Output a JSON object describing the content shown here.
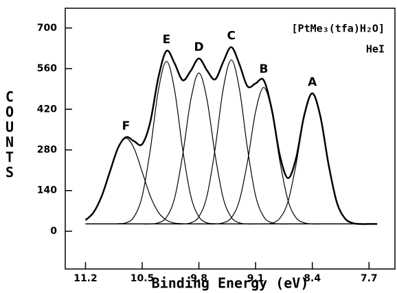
{
  "chart_data": {
    "type": "line",
    "xlabel": "Binding Energy (eV)",
    "ylabel": "COUNTS",
    "annotations": [
      "F",
      "E",
      "D",
      "C",
      "B",
      "A"
    ],
    "texts": [
      "[PtMe₃(tfa)H₂O]",
      "HeI"
    ],
    "x": [
      11.2,
      11.1,
      11.0,
      10.9,
      10.8,
      10.7,
      10.6,
      10.5,
      10.4,
      10.3,
      10.2,
      10.1,
      10.0,
      9.9,
      9.8,
      9.7,
      9.6,
      9.5,
      9.4,
      9.3,
      9.2,
      9.1,
      9.0,
      8.9,
      8.8,
      8.7,
      8.6,
      8.5,
      8.4,
      8.3,
      8.2,
      8.1,
      8.0,
      7.9,
      7.8,
      7.7,
      7.6
    ],
    "series": [
      {
        "color": "#000000",
        "values": [
          38,
          65,
          121,
          204,
          286,
          324,
          310,
          300,
          377,
          530,
          621,
          578,
          520,
          553,
          595,
          554,
          523,
          583,
          634,
          575,
          499,
          509,
          520,
          419,
          260,
          183,
          252,
          399,
          475,
          395,
          231,
          102,
          45,
          28,
          25,
          25,
          25
        ]
      },
      {
        "color": "#000000",
        "values": [
          38,
          65,
          121,
          204,
          285,
          320,
          285,
          204,
          121,
          65,
          38,
          28,
          26,
          25,
          25,
          25,
          25,
          25,
          25,
          25,
          25,
          25,
          25,
          25,
          25,
          25,
          25,
          25,
          25,
          25,
          25,
          25,
          25,
          25,
          25,
          25,
          25
        ]
      },
      {
        "color": "#000000",
        "values": [
          25,
          25,
          25,
          25,
          26,
          29,
          50,
          121,
          281,
          486,
          585,
          486,
          281,
          121,
          50,
          29,
          26,
          25,
          25,
          25,
          25,
          25,
          25,
          25,
          25,
          25,
          25,
          25,
          25,
          25,
          25,
          25,
          25,
          25,
          25,
          25,
          25
        ]
      },
      {
        "color": "#000000",
        "values": [
          25,
          25,
          25,
          25,
          25,
          25,
          25,
          25,
          25,
          29,
          48,
          114,
          263,
          453,
          545,
          453,
          263,
          114,
          48,
          29,
          25,
          25,
          25,
          25,
          25,
          25,
          25,
          25,
          25,
          25,
          25,
          25,
          25,
          25,
          25,
          25,
          25
        ]
      },
      {
        "color": "#000000",
        "values": [
          25,
          25,
          25,
          25,
          25,
          25,
          25,
          25,
          25,
          25,
          25,
          25,
          25,
          29,
          50,
          122,
          284,
          490,
          590,
          490,
          284,
          122,
          50,
          29,
          25,
          25,
          25,
          25,
          25,
          25,
          25,
          25,
          25,
          25,
          25,
          25,
          25
        ]
      },
      {
        "color": "#000000",
        "values": [
          25,
          25,
          25,
          25,
          25,
          25,
          25,
          25,
          25,
          25,
          25,
          25,
          25,
          25,
          25,
          25,
          25,
          29,
          46,
          106,
          240,
          412,
          495,
          412,
          240,
          106,
          46,
          29,
          25,
          25,
          25,
          25,
          25,
          25,
          25,
          25,
          25
        ]
      },
      {
        "color": "#000000",
        "values": [
          25,
          25,
          25,
          25,
          25,
          25,
          25,
          25,
          25,
          25,
          25,
          25,
          25,
          25,
          25,
          25,
          25,
          25,
          25,
          25,
          25,
          25,
          25,
          28,
          45,
          102,
          231,
          395,
          475,
          395,
          231,
          102,
          45,
          28,
          25,
          25,
          25
        ]
      }
    ],
    "xlim": [
      11.45,
      7.38
    ],
    "xticks": [
      11.2,
      10.5,
      9.8,
      9.1,
      8.4,
      7.7
    ],
    "ylim": [
      -130,
      768
    ],
    "yticks": [
      0,
      140,
      280,
      420,
      560,
      700
    ]
  }
}
